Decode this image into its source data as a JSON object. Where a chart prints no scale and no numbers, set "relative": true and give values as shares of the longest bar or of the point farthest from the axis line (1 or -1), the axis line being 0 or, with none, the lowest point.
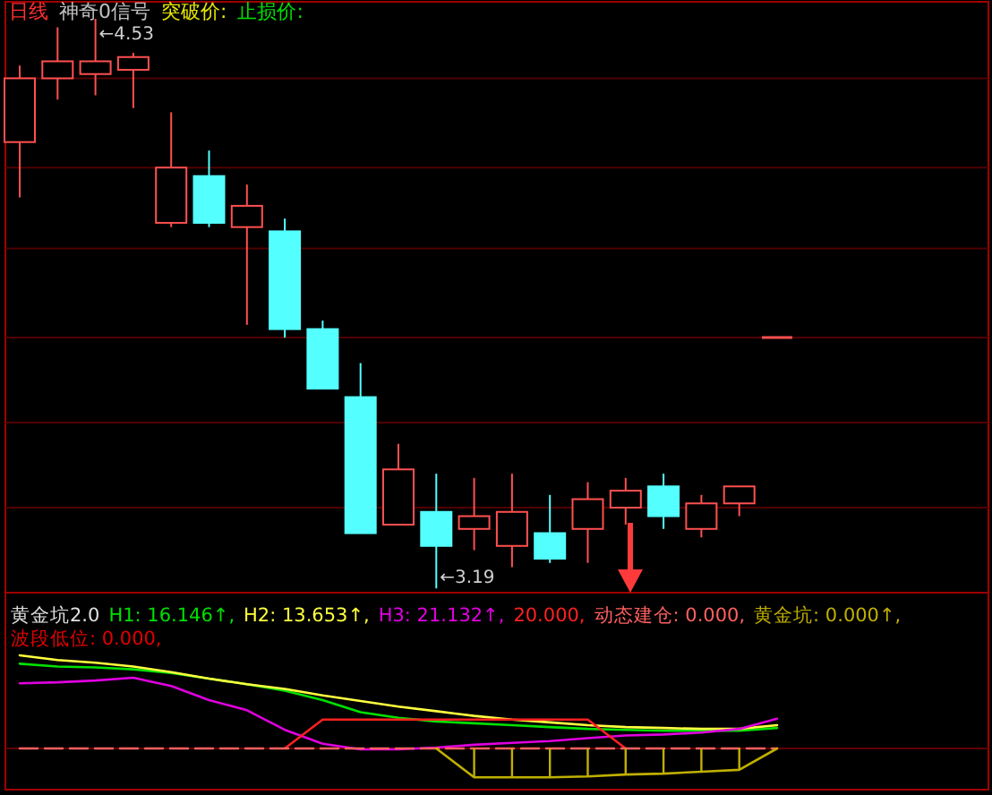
{
  "chart_data": [
    {
      "type": "candlestick",
      "categories": [
        null,
        null,
        null,
        null,
        null,
        null,
        null,
        null,
        null,
        null,
        null,
        null,
        null,
        null,
        null,
        null,
        null,
        null,
        null,
        null,
        null
      ],
      "ohlc": [
        [
          4.24,
          4.42,
          4.11,
          4.39
        ],
        [
          4.39,
          4.51,
          4.34,
          4.43
        ],
        [
          4.4,
          4.53,
          4.35,
          4.43
        ],
        [
          4.41,
          4.45,
          4.32,
          4.44
        ],
        [
          4.05,
          4.31,
          4.04,
          4.18
        ],
        [
          4.16,
          4.22,
          4.04,
          4.05
        ],
        [
          4.04,
          4.14,
          3.81,
          4.09
        ],
        [
          4.03,
          4.06,
          3.78,
          3.8
        ],
        [
          3.8,
          3.82,
          3.66,
          3.66
        ],
        [
          3.64,
          3.72,
          3.32,
          3.32
        ],
        [
          3.34,
          3.53,
          3.34,
          3.47
        ],
        [
          3.37,
          3.46,
          3.19,
          3.29
        ],
        [
          3.33,
          3.45,
          3.28,
          3.36
        ],
        [
          3.29,
          3.46,
          3.24,
          3.37
        ],
        [
          3.32,
          3.41,
          3.25,
          3.26
        ],
        [
          3.33,
          3.44,
          3.25,
          3.4
        ],
        [
          3.38,
          3.45,
          3.34,
          3.42
        ],
        [
          3.43,
          3.46,
          3.33,
          3.36
        ],
        [
          3.33,
          3.41,
          3.31,
          3.39
        ],
        [
          3.39,
          3.43,
          3.36,
          3.43
        ],
        [
          3.78,
          3.78,
          3.78,
          3.78
        ]
      ],
      "ylim": [
        3.18,
        4.57
      ],
      "yticks": [
        {
          "value": 4.39,
          "label": null
        },
        {
          "value": 4.18,
          "label": null
        },
        {
          "value": 3.99,
          "label": null
        },
        {
          "value": 3.78,
          "label": null
        },
        {
          "value": 3.58,
          "label": null
        },
        {
          "value": 3.38,
          "label": null
        }
      ],
      "grid": "y",
      "annotations": [
        "日线",
        "神奇0信号",
        "突破价:",
        "止损价:",
        "←4.53",
        "←3.19"
      ]
    },
    {
      "type": "line",
      "title": "黄金坑2.0",
      "relative": true,
      "categories": [
        null,
        null,
        null,
        null,
        null,
        null,
        null,
        null,
        null,
        null,
        null,
        null,
        null,
        null,
        null,
        null,
        null,
        null,
        null,
        null,
        null
      ],
      "series": [
        {
          "name": "H1: 16.146↑,",
          "color": "#00e000",
          "values": [
            0.91,
            0.88,
            0.87,
            0.85,
            0.81,
            0.75,
            0.69,
            0.62,
            0.52,
            0.39,
            0.33,
            0.29,
            0.27,
            0.25,
            0.23,
            0.21,
            0.2,
            0.19,
            0.19,
            0.19,
            0.22
          ]
        },
        {
          "name": "H2: 13.653↑,",
          "color": "#ffff40",
          "values": [
            1.0,
            0.95,
            0.92,
            0.88,
            0.82,
            0.75,
            0.69,
            0.64,
            0.57,
            0.51,
            0.45,
            0.4,
            0.35,
            0.31,
            0.28,
            0.25,
            0.23,
            0.22,
            0.21,
            0.21,
            0.25
          ]
        },
        {
          "name": "H3: 21.132↑,",
          "color": "#e000e0",
          "values": [
            0.7,
            0.71,
            0.73,
            0.76,
            0.67,
            0.52,
            0.41,
            0.2,
            0.05,
            -0.01,
            -0.01,
            0.01,
            0.04,
            0.06,
            0.08,
            0.11,
            0.14,
            0.15,
            0.17,
            0.21,
            0.32
          ]
        },
        {
          "name": "20.000,",
          "color": "#ff2020",
          "values": [
            null,
            null,
            null,
            null,
            null,
            null,
            null,
            0,
            0.31,
            0.31,
            0.31,
            0.31,
            0.31,
            0.31,
            0.31,
            0.31,
            0,
            null,
            null,
            null,
            null
          ]
        },
        {
          "name": "动态建仓: 0.000,",
          "color": "#ff6060",
          "line_style": "dashed",
          "values": [
            0,
            0,
            0,
            0,
            0,
            0,
            0,
            0,
            0,
            0,
            0,
            0,
            0,
            0,
            0,
            0,
            0,
            0,
            0,
            0,
            0
          ]
        },
        {
          "name": "黄金坑: 0.000↑,",
          "color": "#c0b000",
          "values": [
            null,
            null,
            null,
            null,
            null,
            null,
            null,
            null,
            null,
            null,
            null,
            0,
            -0.31,
            -0.31,
            -0.31,
            -0.3,
            -0.28,
            -0.27,
            -0.25,
            -0.23,
            0
          ]
        },
        {
          "type": "bar",
          "color": "#c0b000",
          "values": [
            null,
            null,
            null,
            null,
            null,
            null,
            null,
            null,
            null,
            null,
            null,
            null,
            -0.31,
            -0.31,
            -0.31,
            -0.3,
            -0.28,
            -0.27,
            -0.25,
            -0.23,
            null
          ]
        }
      ],
      "annotations": [
        "波段低位: 0.000,"
      ]
    }
  ]
}
